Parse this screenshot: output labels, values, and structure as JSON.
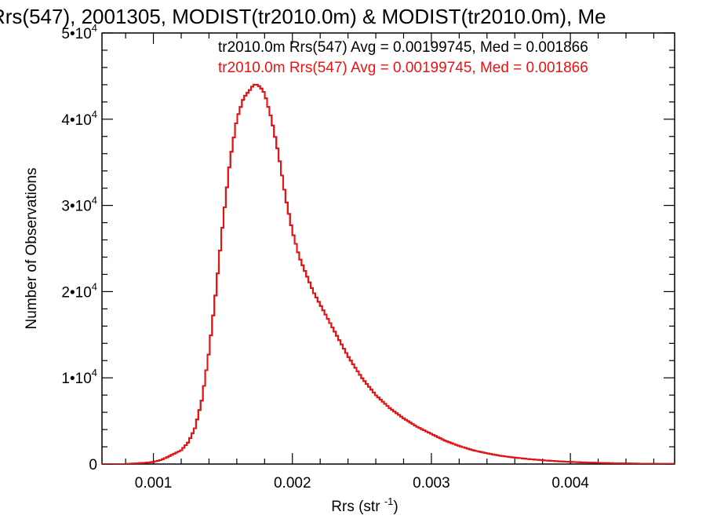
{
  "chart_data": {
    "type": "line",
    "title": "Rrs(547), 2001305, MODIST(tr2010.0m) & MODIST(tr2010.0m), Me",
    "xlabel": "Rrs (str",
    "xlabel_sup": "-1",
    "xlabel_end": ")",
    "ylabel": "Number of Observations",
    "xlim": [
      0.00063,
      0.00475
    ],
    "ylim": [
      0,
      50000
    ],
    "x_ticks": [
      0.001,
      0.002,
      0.003,
      0.004
    ],
    "x_tick_labels": [
      "0.001",
      "0.002",
      "0.003",
      "0.004"
    ],
    "y_ticks": [
      0,
      10000,
      20000,
      30000,
      40000,
      50000
    ],
    "y_tick_labels": [
      {
        "base": "0",
        "exp": ""
      },
      {
        "base": "1•10",
        "exp": "4"
      },
      {
        "base": "2•10",
        "exp": "4"
      },
      {
        "base": "3•10",
        "exp": "4"
      },
      {
        "base": "4•10",
        "exp": "4"
      },
      {
        "base": "5•10",
        "exp": "4"
      }
    ],
    "legend": [
      {
        "text": "tr2010.0m Rrs(547) Avg = 0.00199745, Med = 0.001866",
        "color": "#000000"
      },
      {
        "text": "tr2010.0m Rrs(547) Avg = 0.00199745, Med = 0.001866",
        "color": "#ee1111"
      }
    ],
    "legend_position": "top-right",
    "grid": false,
    "step": "histogram",
    "series": [
      {
        "color": "#000000",
        "x": [
          0.00063,
          0.0008,
          0.0009,
          0.00095,
          0.001,
          0.00105,
          0.0011,
          0.00115,
          0.0012,
          0.00125,
          0.0013,
          0.00135,
          0.0014,
          0.00145,
          0.0015,
          0.00155,
          0.0016,
          0.00165,
          0.0017,
          0.00172,
          0.00175,
          0.00178,
          0.0018,
          0.00185,
          0.0019,
          0.00195,
          0.002,
          0.00205,
          0.0021,
          0.00215,
          0.0022,
          0.00225,
          0.0023,
          0.00235,
          0.0024,
          0.0025,
          0.0026,
          0.0027,
          0.0028,
          0.0029,
          0.003,
          0.0031,
          0.0032,
          0.0033,
          0.0034,
          0.0035,
          0.0036,
          0.0037,
          0.0038,
          0.0039,
          0.004,
          0.0041,
          0.0042,
          0.0043,
          0.0044,
          0.0045,
          0.0046,
          0.00475
        ],
        "y": [
          0,
          0,
          100,
          150,
          250,
          450,
          800,
          1200,
          1600,
          2500,
          4200,
          7500,
          13000,
          20000,
          28000,
          35000,
          40000,
          42500,
          43500,
          44000,
          44000,
          43500,
          43000,
          40000,
          36000,
          31000,
          27000,
          24000,
          22000,
          20000,
          18500,
          17000,
          15500,
          14000,
          12500,
          10000,
          8000,
          6500,
          5300,
          4300,
          3500,
          2700,
          2100,
          1600,
          1250,
          950,
          750,
          580,
          440,
          330,
          250,
          190,
          140,
          100,
          70,
          50,
          30,
          20
        ]
      },
      {
        "color": "#ee1111",
        "x": [
          0.00063,
          0.0008,
          0.0009,
          0.00095,
          0.001,
          0.00105,
          0.0011,
          0.00115,
          0.0012,
          0.00125,
          0.0013,
          0.00135,
          0.0014,
          0.00145,
          0.0015,
          0.00155,
          0.0016,
          0.00165,
          0.0017,
          0.00172,
          0.00175,
          0.00178,
          0.0018,
          0.00185,
          0.0019,
          0.00195,
          0.002,
          0.00205,
          0.0021,
          0.00215,
          0.0022,
          0.00225,
          0.0023,
          0.00235,
          0.0024,
          0.0025,
          0.0026,
          0.0027,
          0.0028,
          0.0029,
          0.003,
          0.0031,
          0.0032,
          0.0033,
          0.0034,
          0.0035,
          0.0036,
          0.0037,
          0.0038,
          0.0039,
          0.004,
          0.0041,
          0.0042,
          0.0043,
          0.0044,
          0.0045,
          0.0046,
          0.00475
        ],
        "y": [
          0,
          0,
          100,
          150,
          250,
          450,
          800,
          1200,
          1600,
          2500,
          4200,
          7500,
          13000,
          20000,
          28000,
          35000,
          40000,
          42500,
          43500,
          44000,
          44000,
          43500,
          43000,
          40000,
          36000,
          31000,
          27000,
          24000,
          22000,
          20000,
          18500,
          17000,
          15500,
          14000,
          12500,
          10000,
          8000,
          6500,
          5300,
          4300,
          3500,
          2700,
          2100,
          1600,
          1250,
          950,
          750,
          580,
          440,
          330,
          250,
          190,
          140,
          100,
          70,
          50,
          30,
          20
        ]
      }
    ]
  }
}
